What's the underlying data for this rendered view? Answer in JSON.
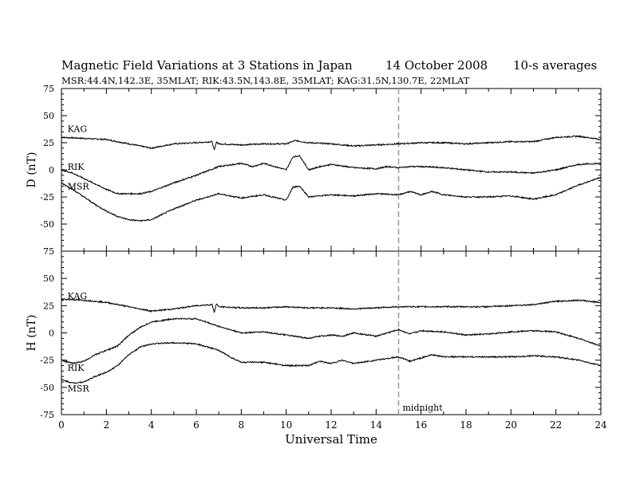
{
  "header": {
    "title": "Magnetic Field Variations at 3 Stations in Japan",
    "date": "14 October 2008",
    "averaging": "10-s averages",
    "stations": "MSR:44.4N,142.3E, 35MLAT;  RIK:43.5N,143.8E, 35MLAT;  KAG:31.5N,130.7E, 22MLAT"
  },
  "chart_data": [
    {
      "type": "line",
      "panel": "D",
      "ylabel": "D (nT)",
      "xlim": [
        0,
        24
      ],
      "ylim": [
        -75,
        75
      ],
      "yticks": [
        75,
        50,
        25,
        0,
        -25,
        -50,
        -75
      ],
      "grid": false,
      "marker": {
        "x": 15,
        "style": "dashed",
        "color": "#999999"
      },
      "series": [
        {
          "name": "KAG",
          "x": [
            0,
            1,
            2,
            2.5,
            3,
            4,
            5,
            6,
            6.7,
            6.8,
            6.9,
            7,
            8,
            9,
            10,
            10.4,
            11,
            12,
            13,
            14,
            15,
            16,
            17,
            18,
            19,
            20,
            21,
            22,
            23,
            24
          ],
          "values": [
            30,
            29,
            28,
            26,
            24,
            20,
            24,
            25,
            26,
            18,
            26,
            24,
            23,
            24,
            24,
            27,
            25,
            24,
            22,
            23,
            24,
            25,
            25,
            24,
            25,
            26,
            26,
            30,
            31,
            28
          ]
        },
        {
          "name": "RIK",
          "x": [
            0,
            0.5,
            1,
            1.5,
            2,
            2.5,
            3,
            3.5,
            4,
            5,
            6,
            7,
            8,
            8.5,
            9,
            9.5,
            10,
            10.3,
            10.6,
            11,
            11.5,
            12,
            13,
            14,
            14.5,
            15,
            15.5,
            16,
            17,
            18,
            19,
            20,
            21,
            22,
            23,
            24
          ],
          "values": [
            0,
            -3,
            -8,
            -13,
            -18,
            -22,
            -22,
            -22,
            -20,
            -12,
            -5,
            3,
            6,
            3,
            6,
            3,
            0,
            12,
            13,
            0,
            3,
            5,
            2,
            1,
            3,
            2,
            3,
            3,
            2,
            0,
            -2,
            -2,
            -3,
            0,
            5,
            6
          ]
        },
        {
          "name": "MSR",
          "x": [
            0,
            0.5,
            1,
            1.5,
            2,
            2.5,
            3,
            3.5,
            4,
            5,
            6,
            7,
            8,
            9,
            10,
            10.3,
            10.6,
            11,
            12,
            13,
            14,
            15,
            15.5,
            16,
            16.5,
            17,
            18,
            19,
            20,
            21,
            22,
            23,
            24
          ],
          "values": [
            -12,
            -18,
            -25,
            -32,
            -38,
            -43,
            -46,
            -47,
            -46,
            -36,
            -28,
            -22,
            -26,
            -23,
            -28,
            -16,
            -15,
            -25,
            -23,
            -24,
            -22,
            -23,
            -20,
            -23,
            -20,
            -23,
            -25,
            -25,
            -24,
            -27,
            -23,
            -14,
            -7
          ]
        }
      ],
      "labels": [
        {
          "text": "KAG",
          "x": 0.2,
          "y": 38
        },
        {
          "text": "RIK",
          "x": 0.2,
          "y": 3
        },
        {
          "text": "MSR",
          "x": 0.2,
          "y": -15
        }
      ]
    },
    {
      "type": "line",
      "panel": "H",
      "ylabel": "H (nT)",
      "xlabel": "Universal Time",
      "xlim": [
        0,
        24
      ],
      "ylim": [
        -75,
        75
      ],
      "xticks": [
        0,
        2,
        4,
        6,
        8,
        10,
        12,
        14,
        16,
        18,
        20,
        22,
        24
      ],
      "yticks": [
        75,
        50,
        25,
        0,
        -25,
        -50,
        -75
      ],
      "grid": false,
      "marker": {
        "x": 15,
        "style": "dashed",
        "color": "#999999",
        "label": "midnight"
      },
      "series": [
        {
          "name": "KAG",
          "x": [
            0,
            1,
            2,
            3,
            4,
            5,
            6,
            6.7,
            6.8,
            6.9,
            7,
            8,
            9,
            10,
            11,
            12,
            13,
            14,
            15,
            16,
            17,
            18,
            19,
            20,
            21,
            22,
            23,
            24
          ],
          "values": [
            31,
            30,
            28,
            24,
            20,
            22,
            25,
            26,
            19,
            27,
            24,
            23,
            23,
            24,
            23,
            23,
            22,
            23,
            24,
            24,
            24,
            24,
            24,
            25,
            26,
            29,
            30,
            28
          ]
        },
        {
          "name": "RIK",
          "x": [
            0,
            0.5,
            1,
            1.5,
            2,
            2.5,
            3,
            3.5,
            4,
            5,
            6,
            7,
            7.5,
            8,
            9,
            10,
            11,
            11.5,
            12,
            12.5,
            13,
            14,
            15,
            15.5,
            16,
            17,
            18,
            19,
            20,
            21,
            22,
            22.5,
            23,
            24
          ],
          "values": [
            -25,
            -28,
            -26,
            -20,
            -16,
            -12,
            -2,
            5,
            10,
            13,
            13,
            6,
            3,
            0,
            1,
            -2,
            -5,
            -3,
            -2,
            -3,
            0,
            -3,
            3,
            -1,
            2,
            1,
            -2,
            -1,
            1,
            2,
            1,
            -2,
            -5,
            -12
          ]
        },
        {
          "name": "MSR",
          "x": [
            0,
            0.5,
            1,
            1.5,
            2,
            2.5,
            3,
            3.5,
            4,
            5,
            6,
            7,
            7.5,
            8,
            9,
            10,
            11,
            11.5,
            12,
            12.5,
            13,
            14,
            15,
            15.5,
            16,
            16.5,
            17,
            18,
            19,
            20,
            21,
            22,
            23,
            24
          ],
          "values": [
            -43,
            -46,
            -45,
            -40,
            -36,
            -30,
            -20,
            -13,
            -10,
            -9,
            -10,
            -16,
            -22,
            -27,
            -27,
            -30,
            -30,
            -26,
            -28,
            -25,
            -28,
            -25,
            -22,
            -26,
            -23,
            -20,
            -22,
            -22,
            -22,
            -22,
            -21,
            -22,
            -25,
            -30
          ]
        }
      ],
      "labels": [
        {
          "text": "KAG",
          "x": 0.2,
          "y": 34
        },
        {
          "text": "RIK",
          "x": 0.2,
          "y": -32
        },
        {
          "text": "MSR",
          "x": 0.2,
          "y": -51
        }
      ]
    }
  ]
}
